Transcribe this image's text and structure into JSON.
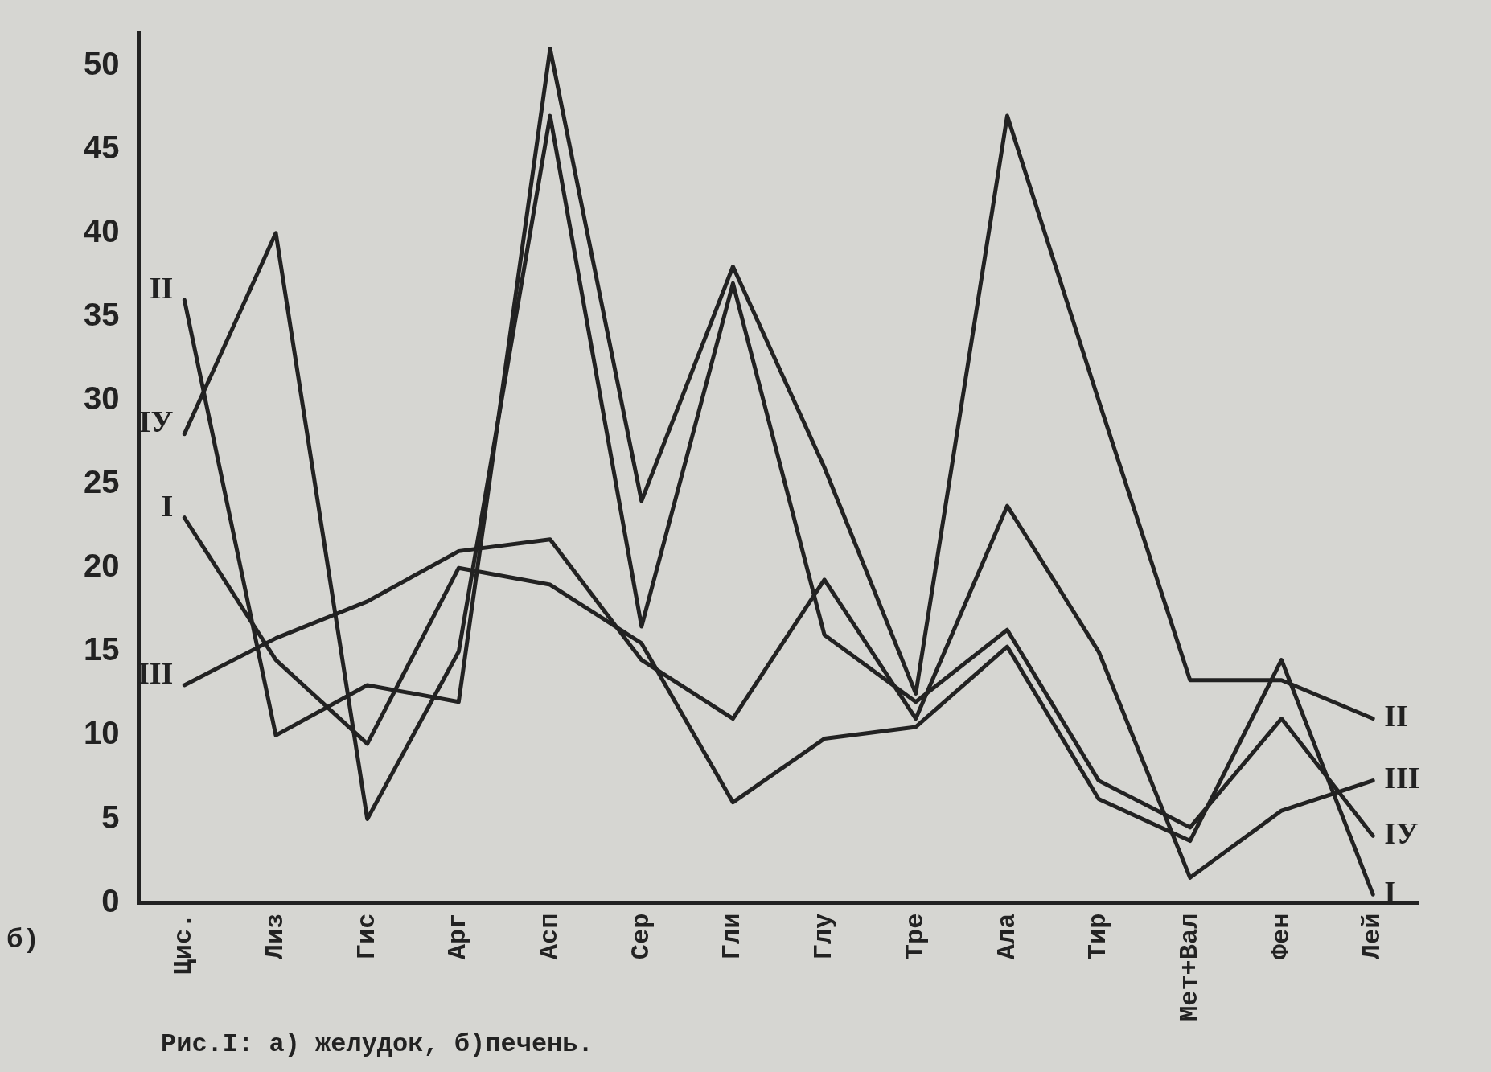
{
  "chart_data": {
    "type": "line",
    "categories": [
      "Цис.",
      "Лиз",
      "Гис",
      "Арг",
      "Асп",
      "Сер",
      "Гли",
      "Глу",
      "Тре",
      "Ала",
      "Тир",
      "Мет+Вал",
      "Фен",
      "Лей"
    ],
    "series": [
      {
        "name": "I",
        "color": "#222222",
        "values": [
          23,
          14.5,
          9.5,
          20,
          19,
          15.5,
          6,
          9.8,
          10.5,
          15.3,
          6.2,
          3.7,
          14.5,
          0.5
        ]
      },
      {
        "name": "II",
        "color": "#222222",
        "values": [
          36,
          10,
          13,
          12,
          51,
          24,
          38,
          26,
          12.5,
          47,
          30,
          13.3,
          13.3,
          11
        ]
      },
      {
        "name": "III",
        "color": "#222222",
        "values": [
          13,
          15.8,
          18,
          21,
          21.7,
          14.5,
          11,
          19.3,
          11,
          23.7,
          15,
          1.5,
          5.5,
          7.3
        ]
      },
      {
        "name": "IУ",
        "color": "#222222",
        "values": [
          28,
          40,
          5,
          15,
          47,
          16.5,
          37,
          16,
          12,
          16.3,
          7.3,
          4.5,
          11,
          4
        ]
      }
    ],
    "ylim": [
      0,
      52
    ],
    "yticks": [
      0,
      5,
      10,
      15,
      20,
      25,
      30,
      35,
      40,
      45,
      50
    ],
    "grid": false,
    "legend": false,
    "marker": "none",
    "line_style": "solid",
    "annotations": [
      "б)",
      "Рис.I: а) желудок, б)печень."
    ]
  }
}
